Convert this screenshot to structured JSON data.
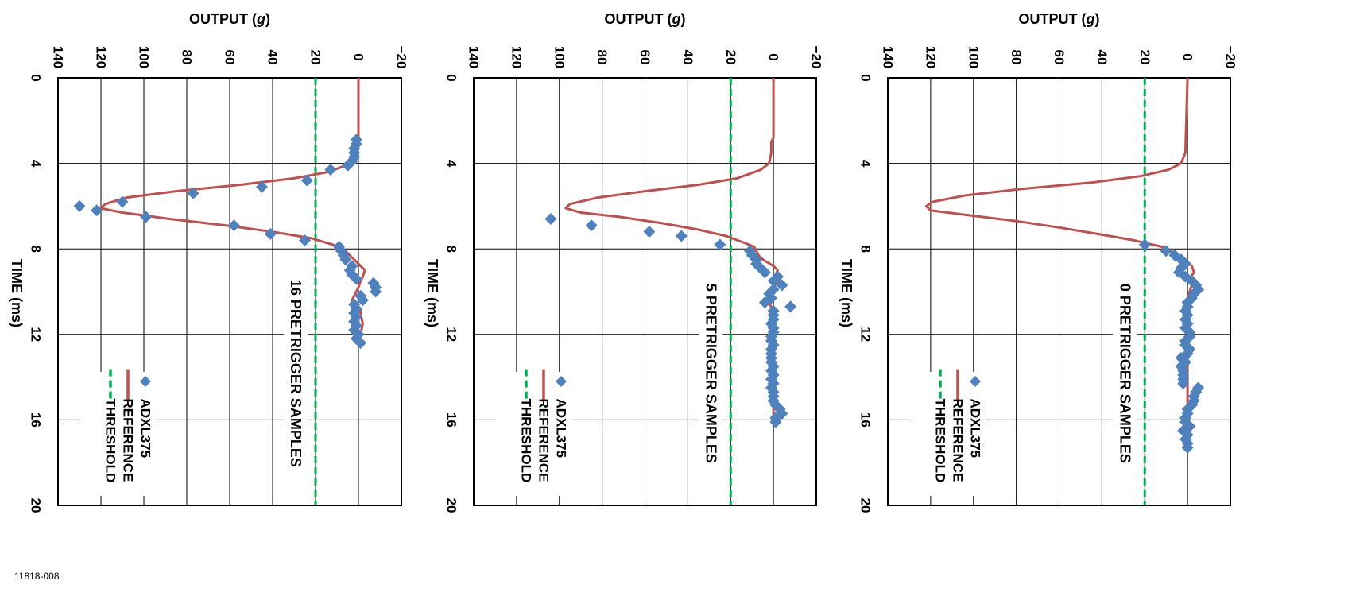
{
  "figure_id": "11818-008",
  "colors": {
    "adxl": "#4f81bd",
    "reference": "#c0504d",
    "threshold": "#00b050",
    "grid": "#000000"
  },
  "chart_data": [
    {
      "type": "line",
      "orientation": "rotated-90",
      "title": "",
      "xlabel": "TIME (ms)",
      "ylabel": "OUTPUT (g)",
      "ylabel_main": "OUTPUT (",
      "ylabel_unit": "g",
      "ylabel_close": ")",
      "xlim": [
        0,
        20
      ],
      "ylim": [
        -20,
        140
      ],
      "xticks": [
        0,
        4,
        8,
        12,
        16,
        20
      ],
      "yticks": [
        -20,
        0,
        20,
        40,
        60,
        80,
        100,
        120,
        140
      ],
      "xtick_labels": [
        "0",
        "4",
        "8",
        "12",
        "16",
        "20"
      ],
      "ytick_labels": [
        "−20",
        "0",
        "20",
        "40",
        "60",
        "80",
        "100",
        "120",
        "140"
      ],
      "grid": true,
      "legend_placement": "bottom-right",
      "annotation": "0 PRETRIGGER SAMPLES",
      "threshold": 20,
      "series": [
        {
          "name": "ADXL375",
          "marker": "diamond",
          "x": [
            7.8,
            8.1,
            8.3,
            8.5,
            8.7,
            8.9,
            9.1,
            9.3,
            9.5,
            9.7,
            9.9,
            10.1,
            10.3,
            10.5,
            10.7,
            10.9,
            11.1,
            11.3,
            11.5,
            11.7,
            11.9,
            12.1,
            12.3,
            12.5,
            12.7,
            12.9,
            13.1,
            13.3,
            13.5,
            13.7,
            13.9,
            14.1,
            14.3,
            14.5,
            14.7,
            14.9,
            15.1,
            15.3,
            15.5,
            15.7,
            15.9,
            16.1,
            16.3,
            16.5,
            16.7,
            16.9,
            17.1,
            17.3
          ],
          "y": [
            20,
            10,
            6,
            3,
            1,
            3,
            4,
            1,
            -2,
            -4,
            -5,
            -3,
            -2,
            0,
            0,
            1,
            0,
            1,
            0,
            1,
            -1,
            -1,
            1,
            1,
            -1,
            0,
            3,
            1,
            3,
            2,
            2,
            2,
            2,
            -5,
            -4,
            -3,
            -3,
            -2,
            0,
            0,
            1,
            1,
            -1,
            2,
            0,
            1,
            0,
            0
          ]
        },
        {
          "name": "REFERENCE",
          "x": [
            0,
            3.5,
            4.0,
            4.3,
            4.6,
            4.9,
            5.2,
            5.5,
            5.8,
            6.0,
            6.2,
            6.4,
            6.7,
            7.0,
            7.3,
            7.6,
            7.9,
            8.2,
            8.5,
            8.8,
            9.1,
            9.4,
            9.7,
            10.0,
            10.3,
            10.6,
            11.0,
            11.5,
            12.0,
            13.0,
            14.0,
            15.0,
            16.0,
            17.0,
            17.5
          ],
          "y": [
            0,
            1,
            3,
            9,
            22,
            45,
            78,
            104,
            119,
            122,
            120,
            104,
            80,
            60,
            42,
            25,
            12,
            6,
            2,
            -2,
            -3,
            -1,
            -2,
            -1,
            0,
            1,
            0,
            0,
            0,
            0,
            0,
            0,
            0,
            0,
            0
          ]
        },
        {
          "name": "THRESHOLD",
          "x": [
            0,
            20
          ],
          "y": [
            20,
            20
          ]
        }
      ]
    },
    {
      "type": "line",
      "orientation": "rotated-90",
      "title": "",
      "xlabel": "TIME (ms)",
      "ylabel": "OUTPUT (g)",
      "ylabel_main": "OUTPUT (",
      "ylabel_unit": "g",
      "ylabel_close": ")",
      "xlim": [
        0,
        20
      ],
      "ylim": [
        -20,
        140
      ],
      "xticks": [
        0,
        4,
        8,
        12,
        16,
        20
      ],
      "yticks": [
        -20,
        0,
        20,
        40,
        60,
        80,
        100,
        120,
        140
      ],
      "xtick_labels": [
        "0",
        "4",
        "8",
        "12",
        "16",
        "20"
      ],
      "ytick_labels": [
        "−20",
        "0",
        "20",
        "40",
        "60",
        "80",
        "100",
        "120",
        "140"
      ],
      "grid": true,
      "legend_placement": "bottom-right",
      "annotation": "5 PRETRIGGER SAMPLES",
      "threshold": 20,
      "series": [
        {
          "name": "ADXL375",
          "marker": "diamond",
          "x": [
            6.6,
            6.9,
            7.2,
            7.4,
            7.8,
            8.1,
            8.3,
            8.5,
            8.7,
            8.9,
            9.1,
            9.3,
            9.5,
            9.7,
            9.9,
            10.1,
            10.3,
            10.5,
            10.7,
            10.9,
            11.1,
            11.3,
            11.5,
            11.7,
            11.9,
            12.1,
            12.3,
            12.5,
            12.7,
            12.9,
            13.1,
            13.3,
            13.5,
            13.7,
            13.9,
            14.1,
            14.3,
            14.5,
            14.7,
            14.9,
            15.1,
            15.3,
            15.5,
            15.7,
            15.9,
            16.1
          ],
          "y": [
            104,
            85,
            58,
            43,
            25,
            11,
            10,
            8,
            8,
            6,
            4,
            -2,
            0,
            -4,
            0,
            2,
            1,
            4,
            -8,
            0,
            0,
            0,
            1,
            0,
            0,
            1,
            1,
            0,
            1,
            1,
            1,
            1,
            0,
            1,
            0,
            1,
            0,
            1,
            0,
            0,
            0,
            -1,
            -3,
            -4,
            -1,
            -1
          ]
        },
        {
          "name": "REFERENCE",
          "x": [
            0,
            2.8,
            3.0,
            3.5,
            4.0,
            4.3,
            4.7,
            5.0,
            5.3,
            5.6,
            5.9,
            6.1,
            6.3,
            6.5,
            6.8,
            7.1,
            7.4,
            7.7,
            7.9,
            8.1,
            8.3,
            8.5,
            8.8,
            9.0,
            9.2,
            9.4,
            9.6,
            9.8,
            10.0,
            10.3,
            10.6,
            10.8,
            11.0,
            11.5,
            12.0,
            13.0,
            14.0,
            15.0,
            16.0
          ],
          "y": [
            0,
            0,
            1,
            1,
            2,
            6,
            17,
            35,
            60,
            82,
            95,
            97,
            90,
            72,
            52,
            35,
            22,
            14,
            9,
            8,
            7,
            5,
            0,
            -2,
            -1,
            -3,
            -2,
            1,
            2,
            1,
            2,
            0,
            0,
            0,
            0,
            0,
            0,
            0,
            0
          ]
        },
        {
          "name": "THRESHOLD",
          "x": [
            0,
            20
          ],
          "y": [
            20,
            20
          ]
        }
      ]
    },
    {
      "type": "line",
      "orientation": "rotated-90",
      "title": "",
      "xlabel": "TIME (ms)",
      "ylabel": "OUTPUT (g)",
      "ylabel_main": "OUTPUT (",
      "ylabel_unit": "g",
      "ylabel_close": ")",
      "xlim": [
        0,
        20
      ],
      "ylim": [
        -20,
        140
      ],
      "xticks": [
        0,
        4,
        8,
        12,
        16,
        20
      ],
      "yticks": [
        -20,
        0,
        20,
        40,
        60,
        80,
        100,
        120,
        140
      ],
      "xtick_labels": [
        "0",
        "4",
        "8",
        "12",
        "16",
        "20"
      ],
      "ytick_labels": [
        "−20",
        "0",
        "20",
        "40",
        "60",
        "80",
        "100",
        "120",
        "140"
      ],
      "grid": true,
      "legend_placement": "bottom-right",
      "annotation": "16 PRETRIGGER SAMPLES",
      "threshold": 20,
      "series": [
        {
          "name": "ADXL375",
          "marker": "diamond",
          "x": [
            2.9,
            3.1,
            3.3,
            3.5,
            3.7,
            3.9,
            4.1,
            4.3,
            4.8,
            5.1,
            5.4,
            5.8,
            6.0,
            6.2,
            6.5,
            6.9,
            7.3,
            7.6,
            7.9,
            8.1,
            8.3,
            8.5,
            8.8,
            9.0,
            9.2,
            9.4,
            9.6,
            9.8,
            10.0,
            10.2,
            10.4,
            10.6,
            10.8,
            11.0,
            11.2,
            11.4,
            11.6,
            11.8,
            12.0,
            12.2,
            12.4
          ],
          "y": [
            1,
            1,
            2,
            2,
            2,
            3,
            5,
            13,
            24,
            45,
            77,
            110,
            130,
            122,
            99,
            58,
            41,
            25,
            9,
            8,
            7,
            6,
            3,
            4,
            3,
            1,
            -7,
            -8,
            -8,
            -1,
            -2,
            2,
            1,
            2,
            1,
            2,
            1,
            2,
            0,
            1,
            -1
          ]
        },
        {
          "name": "REFERENCE",
          "x": [
            0,
            3.0,
            3.4,
            3.8,
            4.1,
            4.4,
            4.7,
            5.0,
            5.3,
            5.6,
            5.9,
            6.1,
            6.3,
            6.6,
            6.9,
            7.2,
            7.5,
            7.8,
            8.1,
            8.4,
            8.7,
            9.0,
            9.3,
            9.5,
            9.8,
            10.0,
            10.2,
            10.4,
            10.6,
            10.8,
            11.0,
            11.5,
            12.0
          ],
          "y": [
            0,
            0,
            1,
            2,
            6,
            14,
            30,
            55,
            85,
            108,
            118,
            120,
            110,
            88,
            62,
            40,
            22,
            12,
            6,
            3,
            0,
            -3,
            -2,
            -1,
            0,
            1,
            2,
            3,
            1,
            -1,
            -1,
            -2,
            -1
          ]
        },
        {
          "name": "THRESHOLD",
          "x": [
            0,
            20
          ],
          "y": [
            20,
            20
          ]
        }
      ]
    }
  ]
}
